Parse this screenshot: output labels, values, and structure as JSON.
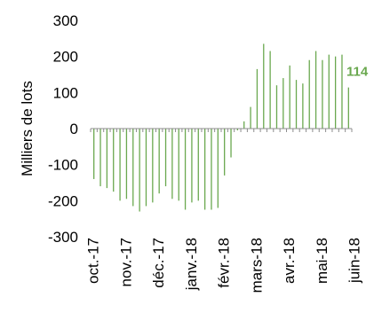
{
  "chart_data": {
    "type": "bar",
    "title": "",
    "xlabel": "",
    "ylabel": "Milliers de lots",
    "ylim": [
      -300,
      300
    ],
    "y_ticks": [
      300,
      200,
      100,
      0,
      -100,
      -200,
      -300
    ],
    "x_tick_labels": [
      "oct.-17",
      "nov.-17",
      "déc.-17",
      "janv.-18",
      "févr.-18",
      "mars-18",
      "avr.-18",
      "mai-18",
      "juin-18"
    ],
    "x_tick_positions": [
      0,
      5,
      10,
      15,
      20,
      25,
      30,
      35,
      40
    ],
    "series": [
      {
        "values": [
          -140,
          -160,
          -165,
          -175,
          -200,
          -195,
          -215,
          -230,
          -215,
          -205,
          -180,
          -160,
          -195,
          -200,
          -225,
          -205,
          -200,
          -225,
          -225,
          -220,
          -130,
          -80,
          -5,
          20,
          60,
          165,
          235,
          215,
          120,
          140,
          175,
          135,
          125,
          190,
          215,
          190,
          205,
          200,
          205,
          114
        ]
      }
    ],
    "last_value_label": "114",
    "grid": false,
    "bar_color": "#6aa84f",
    "label_color": "#6aa84f"
  }
}
